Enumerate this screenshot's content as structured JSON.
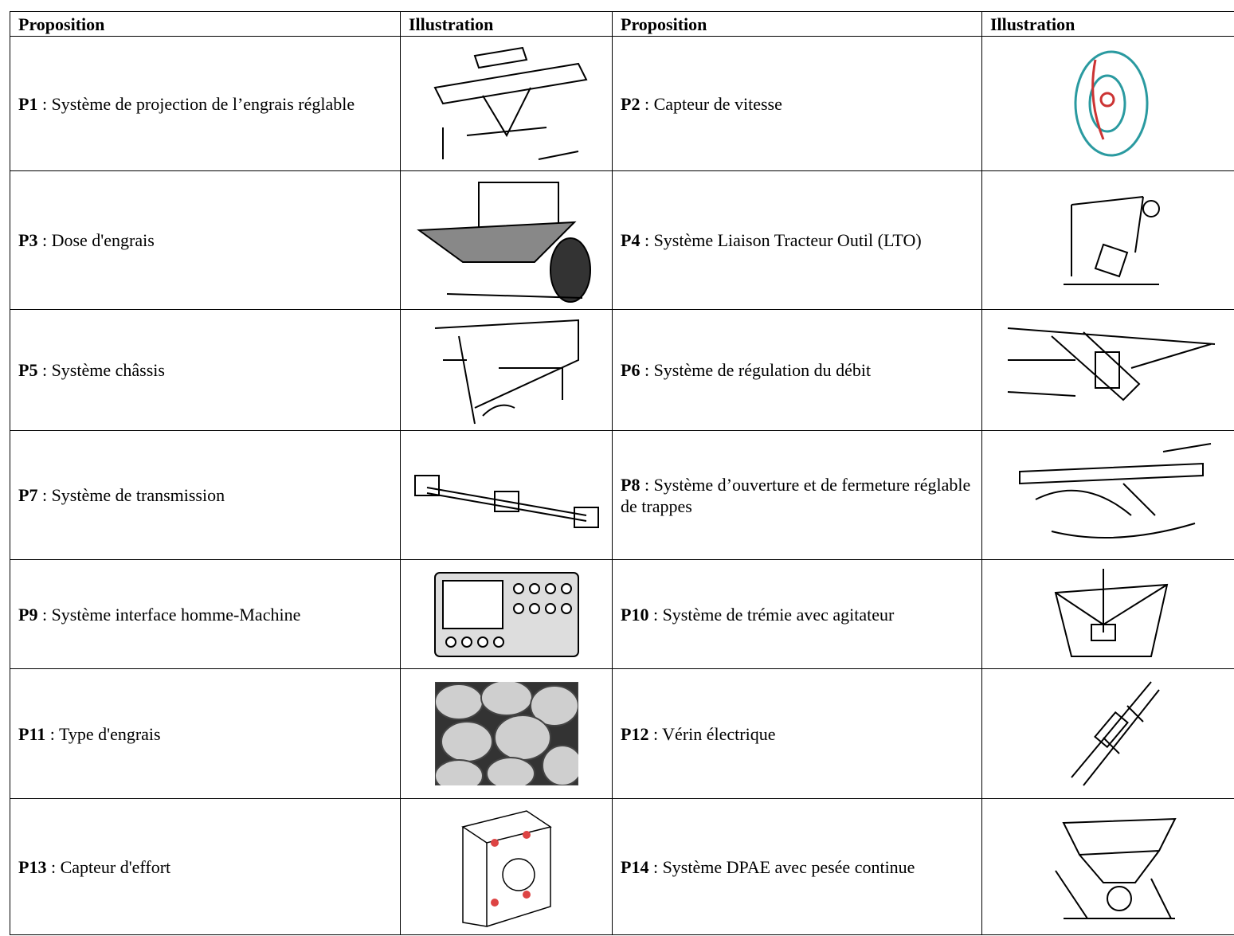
{
  "table": {
    "header": [
      "Proposition",
      "Illustration",
      "Proposition",
      "Illustration"
    ],
    "rows": [
      {
        "left": {
          "code": "P1",
          "text": ": Système de projection de l’engrais réglable"
        },
        "right": {
          "code": "P2",
          "text": ": Capteur de vitesse"
        }
      },
      {
        "left": {
          "code": "P3",
          "text": ": Dose d'engrais"
        },
        "right": {
          "code": "P4",
          "text": ": Système Liaison Tracteur Outil (LTO)"
        }
      },
      {
        "left": {
          "code": "P5",
          "text": ": Système châssis"
        },
        "right": {
          "code": "P6",
          "text": ": Système de régulation du débit"
        }
      },
      {
        "left": {
          "code": "P7",
          "text": ": Système de transmission"
        },
        "right": {
          "code": "P8",
          "text": ": Système d’ouverture et de fermeture réglable de trappes"
        }
      },
      {
        "left": {
          "code": "P9",
          "text": ": Système interface homme-Machine"
        },
        "right": {
          "code": "P10",
          "text": ": Système de trémie avec agitateur"
        }
      },
      {
        "left": {
          "code": "P11",
          "text": ": Type d'engrais"
        },
        "right": {
          "code": "P12",
          "text": ": Vérin électrique"
        }
      },
      {
        "left": {
          "code": "P13",
          "text": ": Capteur d'effort"
        },
        "right": {
          "code": "P14",
          "text": ": Système DPAE avec pesée continue"
        }
      }
    ]
  }
}
